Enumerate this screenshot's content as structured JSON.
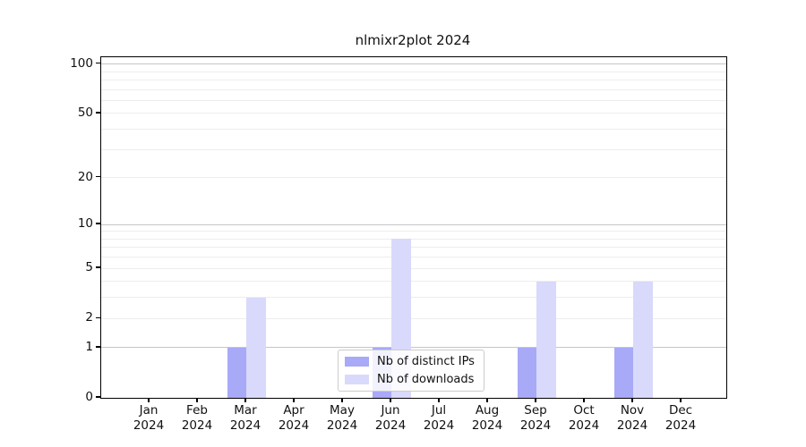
{
  "chart_data": {
    "type": "bar",
    "title": "nlmixr2plot 2024",
    "year": "2024",
    "categories": [
      "Jan",
      "Feb",
      "Mar",
      "Apr",
      "May",
      "Jun",
      "Jul",
      "Aug",
      "Sep",
      "Oct",
      "Nov",
      "Dec"
    ],
    "series": [
      {
        "name": "Nb of distinct IPs",
        "color": "#a8a9f7",
        "values": [
          0,
          0,
          1,
          0,
          0,
          1,
          0,
          0,
          1,
          0,
          1,
          0
        ]
      },
      {
        "name": "Nb of downloads",
        "color": "#d9d9fb",
        "values": [
          0,
          0,
          3,
          0,
          0,
          8,
          0,
          0,
          4,
          0,
          4,
          0
        ]
      }
    ],
    "yticks": [
      0,
      1,
      2,
      5,
      10,
      20,
      50,
      100
    ],
    "scale": "log1p",
    "ylim": [
      0,
      110
    ],
    "grid": {
      "major_lines": [
        1,
        10,
        100
      ],
      "minor_lines": [
        2,
        3,
        4,
        5,
        6,
        7,
        8,
        9,
        20,
        30,
        40,
        50,
        60,
        70,
        80,
        90
      ],
      "major_color": "#c6c6c6",
      "minor_color": "#ededed"
    },
    "legend_position": "lower center",
    "axis_color": "#000000",
    "background_color": "#ffffff"
  }
}
